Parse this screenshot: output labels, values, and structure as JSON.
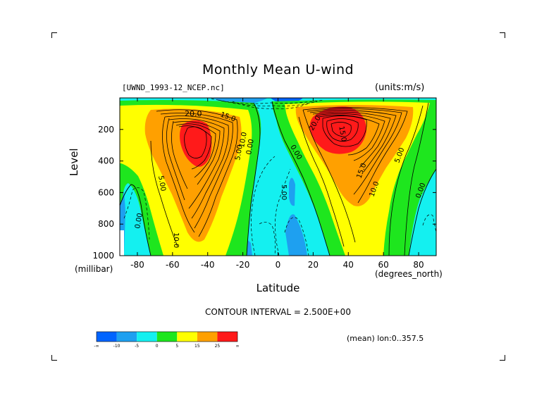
{
  "chart_data": {
    "type": "heatmap",
    "title": "Monthly Mean U-wind",
    "file_label": "[UWND_1993-12_NCEP.nc]",
    "units": "(units:m/s)",
    "xlabel": "Latitude",
    "xunit": "(degrees_north)",
    "ylabel": "Level",
    "yunit": "(millibar)",
    "xlim": [
      -90,
      90
    ],
    "ylim": [
      1000,
      0
    ],
    "x_ticks": [
      -80,
      -60,
      -40,
      -20,
      0,
      20,
      40,
      60,
      80
    ],
    "x_tick_labels": [
      "-80",
      "-60",
      "-40",
      "-20",
      "0",
      "20",
      "40",
      "60",
      "80"
    ],
    "y_ticks": [
      200,
      400,
      600,
      800,
      1000
    ],
    "y_tick_labels": [
      "200",
      "400",
      "600",
      "800",
      "1000"
    ],
    "contour_interval": "CONTOUR INTERVAL = 2.500E+00",
    "mean_note": "(mean) lon:0..357.5",
    "contour_labels": [
      "20.0",
      "15.0",
      "10.0",
      "5.00",
      "0.00",
      "10.0",
      "0.00",
      "5.00",
      "0.00",
      "5.00",
      "15.0",
      "10.0",
      "5.00",
      "0.00",
      "20.0",
      "15.0"
    ],
    "jets": [
      {
        "hemisphere": "south",
        "lat_center": -48,
        "level_center": 260,
        "max": 27.5
      },
      {
        "hemisphere": "north",
        "lat_center": 32,
        "level_center": 190,
        "max": 30
      }
    ],
    "colorbar": {
      "colors": [
        "#0064ff",
        "#1ea0f0",
        "#14f0f0",
        "#1ee61e",
        "#ffff00",
        "#ffa000",
        "#ff1a1a"
      ],
      "labels": [
        "-∞",
        "-10",
        "-5",
        "0",
        "5",
        "15",
        "25",
        "∞"
      ]
    }
  }
}
